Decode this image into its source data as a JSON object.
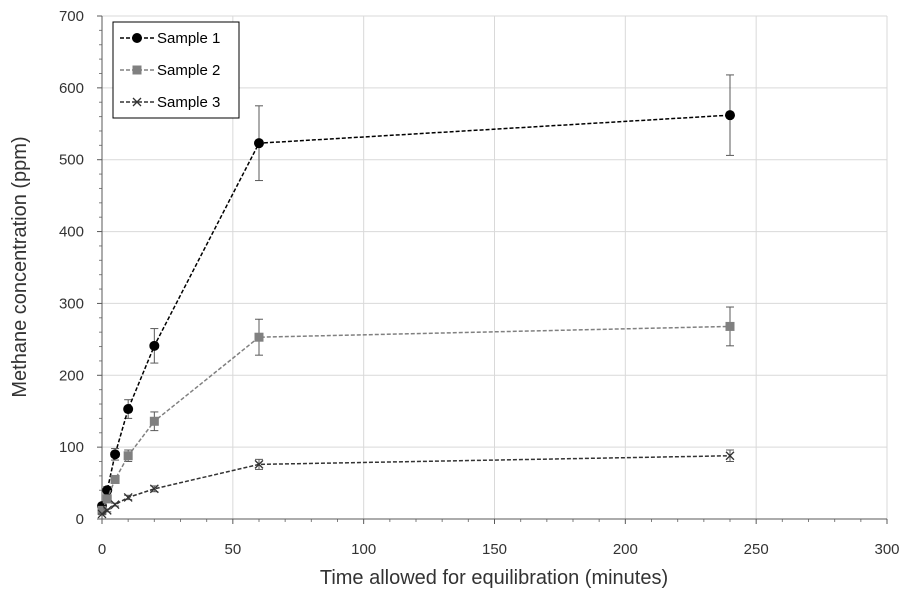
{
  "chart_data": {
    "type": "line",
    "title": "",
    "xlabel": "Time allowed for equilibration (minutes)",
    "ylabel": "Methane concentration (ppm)",
    "xlim": [
      0,
      300
    ],
    "ylim": [
      0,
      700
    ],
    "x_ticks": [
      "0",
      "50",
      "100",
      "150",
      "200",
      "250",
      "300"
    ],
    "y_ticks": [
      "0",
      "100",
      "200",
      "300",
      "400",
      "500",
      "600",
      "700"
    ],
    "grid": true,
    "legend_position": "top-left",
    "x": [
      0,
      2,
      5,
      10,
      20,
      60,
      240
    ],
    "series": [
      {
        "name": "Sample 1",
        "marker": "circle",
        "color": "#000000",
        "values": [
          18,
          40,
          90,
          153,
          241,
          523,
          562
        ],
        "error": [
          3,
          5,
          8,
          13,
          24,
          52,
          56
        ]
      },
      {
        "name": "Sample 2",
        "marker": "square",
        "color": "#808080",
        "values": [
          12,
          28,
          55,
          88,
          136,
          253,
          268
        ],
        "error": [
          2,
          3,
          5,
          8,
          13,
          25,
          27
        ]
      },
      {
        "name": "Sample 3",
        "marker": "x",
        "color": "#333333",
        "values": [
          7,
          12,
          20,
          30,
          42,
          76,
          88
        ],
        "error": [
          1,
          2,
          2,
          3,
          4,
          7,
          8
        ]
      }
    ]
  }
}
